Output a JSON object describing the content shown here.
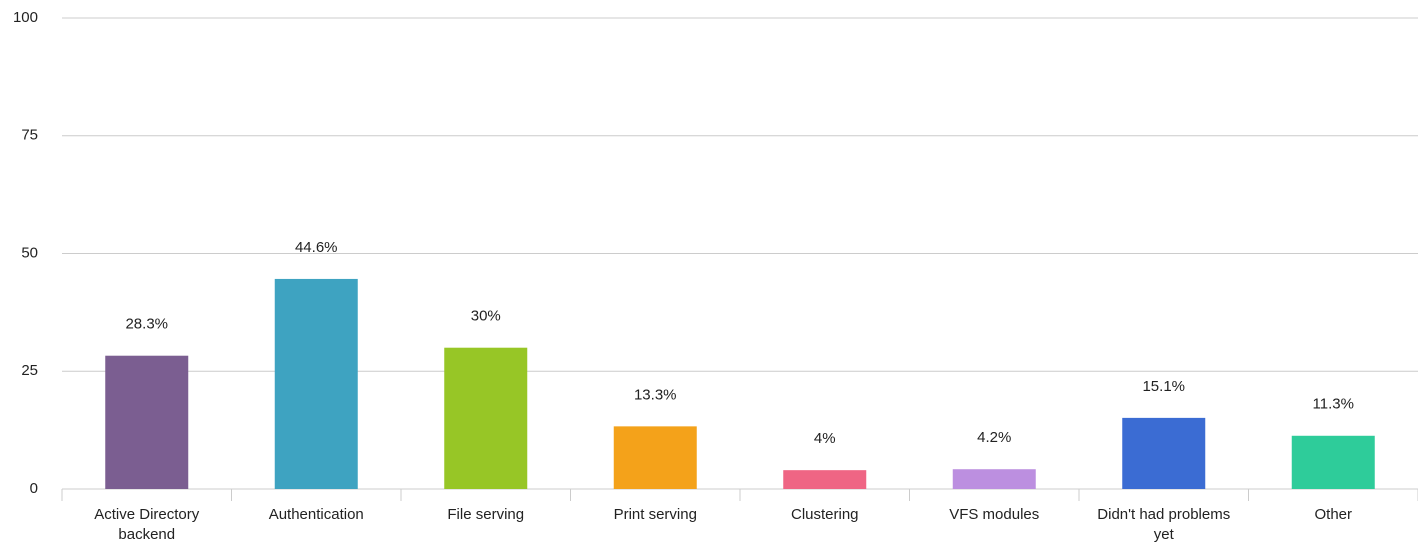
{
  "chart_data": {
    "type": "bar",
    "categories": [
      "Active Directory backend",
      "Authentication",
      "File serving",
      "Print serving",
      "Clustering",
      "VFS modules",
      "Didn't had problems yet",
      "Other"
    ],
    "values": [
      28.3,
      44.6,
      30,
      13.3,
      4,
      4.2,
      15.1,
      11.3
    ],
    "value_labels": [
      "28.3%",
      "44.6%",
      "30%",
      "13.3%",
      "4%",
      "4.2%",
      "15.1%",
      "11.3%"
    ],
    "colors": [
      "#7b5e91",
      "#3ea3c1",
      "#97c626",
      "#f4a21a",
      "#ef6584",
      "#bc8fe0",
      "#3b6cd3",
      "#2ecc9a"
    ],
    "ylim": [
      0,
      100
    ],
    "yticks": [
      0,
      25,
      50,
      75,
      100
    ],
    "grid": true
  }
}
